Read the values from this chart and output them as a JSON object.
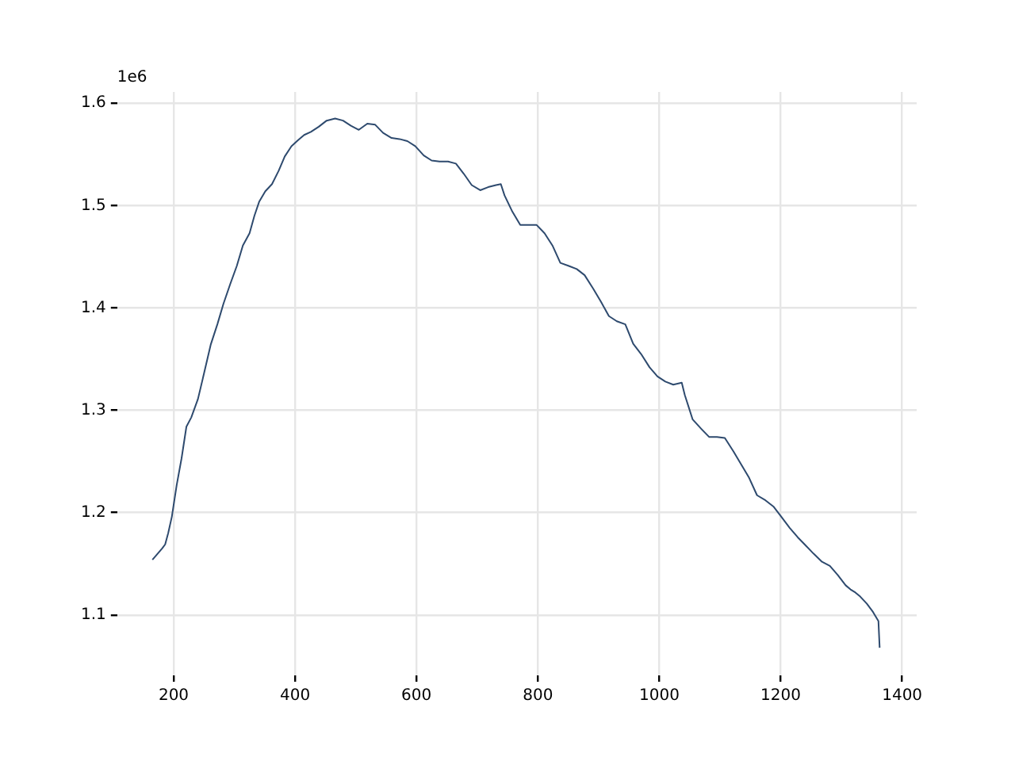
{
  "chart_data": {
    "type": "line",
    "annotations": [
      "1e6"
    ],
    "x": [
      165,
      181,
      186,
      191,
      197,
      205,
      213,
      221,
      229,
      240,
      250,
      261,
      272,
      282,
      293,
      304,
      314,
      325,
      333,
      341,
      351,
      362,
      373,
      383,
      394,
      405,
      415,
      426,
      439,
      452,
      466,
      479,
      492,
      505,
      519,
      532,
      545,
      559,
      572,
      585,
      598,
      612,
      625,
      638,
      652,
      665,
      678,
      691,
      705,
      718,
      731,
      739,
      745,
      758,
      771,
      784,
      798,
      811,
      824,
      837,
      851,
      864,
      877,
      891,
      904,
      917,
      930,
      944,
      957,
      970,
      984,
      997,
      1010,
      1023,
      1037,
      1042,
      1055,
      1069,
      1082,
      1095,
      1108,
      1122,
      1135,
      1148,
      1161,
      1175,
      1188,
      1201,
      1215,
      1228,
      1241,
      1254,
      1268,
      1281,
      1294,
      1307,
      1315,
      1323,
      1331,
      1342,
      1352,
      1361,
      1363
    ],
    "series": [
      {
        "color": "#2e4a6e",
        "values": [
          1.154,
          1.165,
          1.169,
          1.18,
          1.196,
          1.227,
          1.253,
          1.284,
          1.293,
          1.311,
          1.336,
          1.364,
          1.384,
          1.404,
          1.423,
          1.441,
          1.461,
          1.473,
          1.49,
          1.504,
          1.514,
          1.521,
          1.534,
          1.548,
          1.558,
          1.564,
          1.569,
          1.572,
          1.577,
          1.583,
          1.585,
          1.583,
          1.578,
          1.574,
          1.58,
          1.579,
          1.571,
          1.566,
          1.565,
          1.563,
          1.558,
          1.549,
          1.544,
          1.543,
          1.543,
          1.541,
          1.531,
          1.52,
          1.515,
          1.518,
          1.52,
          1.521,
          1.51,
          1.494,
          1.481,
          1.481,
          1.481,
          1.473,
          1.461,
          1.444,
          1.441,
          1.438,
          1.432,
          1.419,
          1.406,
          1.392,
          1.387,
          1.384,
          1.365,
          1.355,
          1.342,
          1.333,
          1.328,
          1.325,
          1.327,
          1.315,
          1.291,
          1.282,
          1.274,
          1.274,
          1.273,
          1.26,
          1.247,
          1.234,
          1.217,
          1.212,
          1.206,
          1.196,
          1.185,
          1.176,
          1.168,
          1.16,
          1.152,
          1.148,
          1.139,
          1.129,
          1.125,
          1.122,
          1.118,
          1.111,
          1.103,
          1.094,
          1.068
        ]
      }
    ],
    "xlim": [
      107,
      1424
    ],
    "xticks": [
      200,
      400,
      600,
      800,
      1000,
      1200,
      1400
    ],
    "ylim": [
      1.041,
      1.611
    ],
    "yticks": [
      1.1,
      1.2,
      1.3,
      1.4,
      1.5,
      1.6
    ],
    "grid": true,
    "legend": false,
    "marker": "none",
    "line_style": "solid"
  }
}
